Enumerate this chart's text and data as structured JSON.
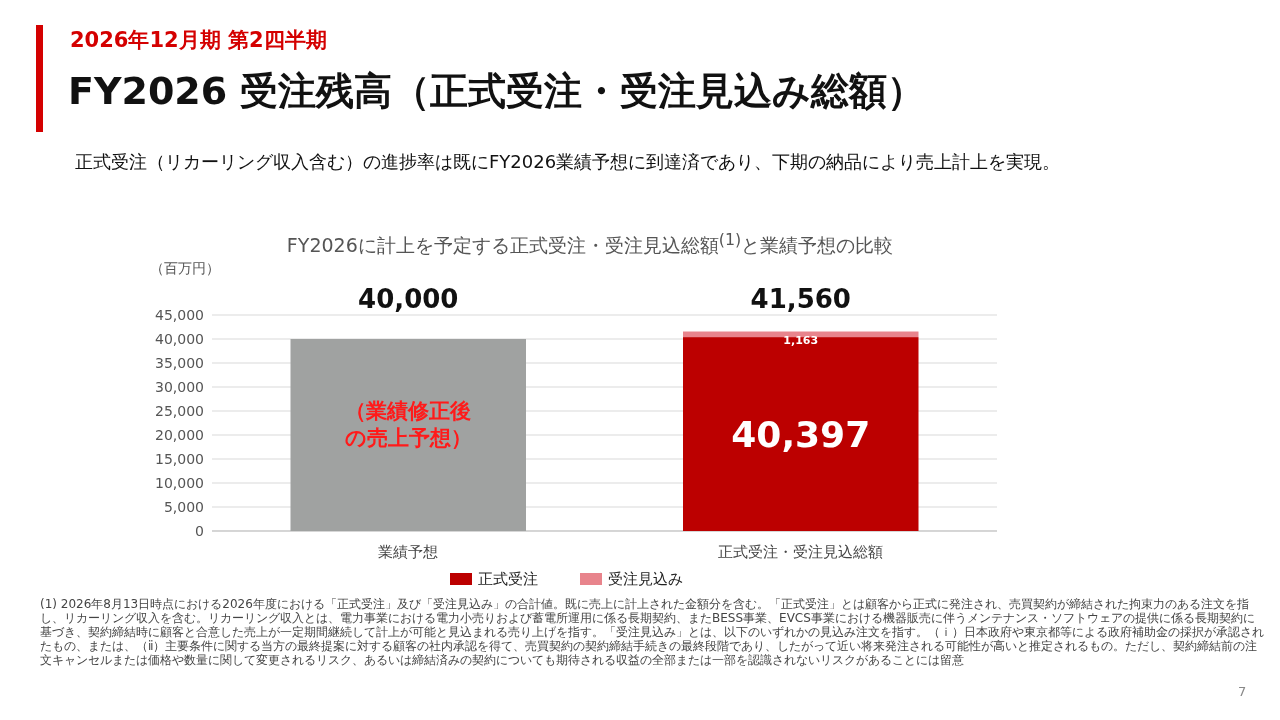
{
  "chart_data": {
    "type": "bar",
    "stacked": true,
    "subtitle": "2026年12月期 第2四半期",
    "title": "FY2026 受注残高（正式受注・受注見込み総額）",
    "ylabel": "（百万円）",
    "annotations": [
      "正式受注（リカーリング収入含む）の進捗率は既にFY2026業績予想に到達済であり、下期の納品により売上計上を実現。",
      "FY2026に計上を予定する正式受注・受注見込総額$^{(1)}$と業績予想の比較",
      "(1) 2026年8月13日時点における2026年度における「正式受注」及び「受注見込み」の合計値。既に売上に計上された金額分を含む。「正式受注」とは顧客から正式に発注され、売買契約が締結された拘束力のある注文を指し、リカーリング収入を含む。リカーリング収入とは、電力事業における電力小売りおよび蓄電所運用に係る長期契約、またBESS事業、EVCS事業における機器販売に伴うメンテナンス・ソフトウェアの提供に係る長期契約に基づき、契約締結時に顧客と合意した売上が一定期間継続して計上が可能と見込まれる売り上げを指す。「受注見込み」とは、以下のいずれかの見込み注文を指す。（ｉ）日本政府や東京都等による政府補助金の採択が承認されたもの、または、（ⅱ）主要条件に関する当方の最終提案に対する顧客の社内承認を得て、売買契約の契約締結手続きの最終段階であり、したがって近い将来発注される可能性が高いと推定されるもの。ただし、契約締結前の注文キャンセルまたは価格や数量に関して変更されるリスク、あるいは締結済みの契約についても期待される収益の全部または一部を認識されないリスクがあることには留意",
      "7",
      "（業績修正後の売上予想）"
    ],
    "categories": [
      "業績予想",
      "正式受注・受注見込総額"
    ],
    "series": [
      {
        "color": "#a0a2a1",
        "values": [
          40000,
          null
        ]
      },
      {
        "name": "正式受注",
        "color": "#bc0000",
        "values": [
          null,
          40397
        ],
        "value_labels": [
          null,
          "40,397"
        ]
      },
      {
        "name": "受注見込み",
        "color": "#e8848c",
        "values": [
          null,
          1163
        ],
        "value_labels": [
          null,
          "1,163"
        ]
      }
    ],
    "totals": [
      "40,000",
      "41,560"
    ],
    "ylim": [
      0,
      45000
    ],
    "yticks": [
      {
        "value": 0,
        "label": "0"
      },
      {
        "value": 5000,
        "label": "5,000"
      },
      {
        "value": 10000,
        "label": "10,000"
      },
      {
        "value": 15000,
        "label": "15,000"
      },
      {
        "value": 20000,
        "label": "20,000"
      },
      {
        "value": 25000,
        "label": "25,000"
      },
      {
        "value": 30000,
        "label": "30,000"
      },
      {
        "value": 35000,
        "label": "35,000"
      },
      {
        "value": 40000,
        "label": "40,000"
      },
      {
        "value": 45000,
        "label": "45,000"
      }
    ],
    "grid": "y",
    "legend": "bottom"
  }
}
